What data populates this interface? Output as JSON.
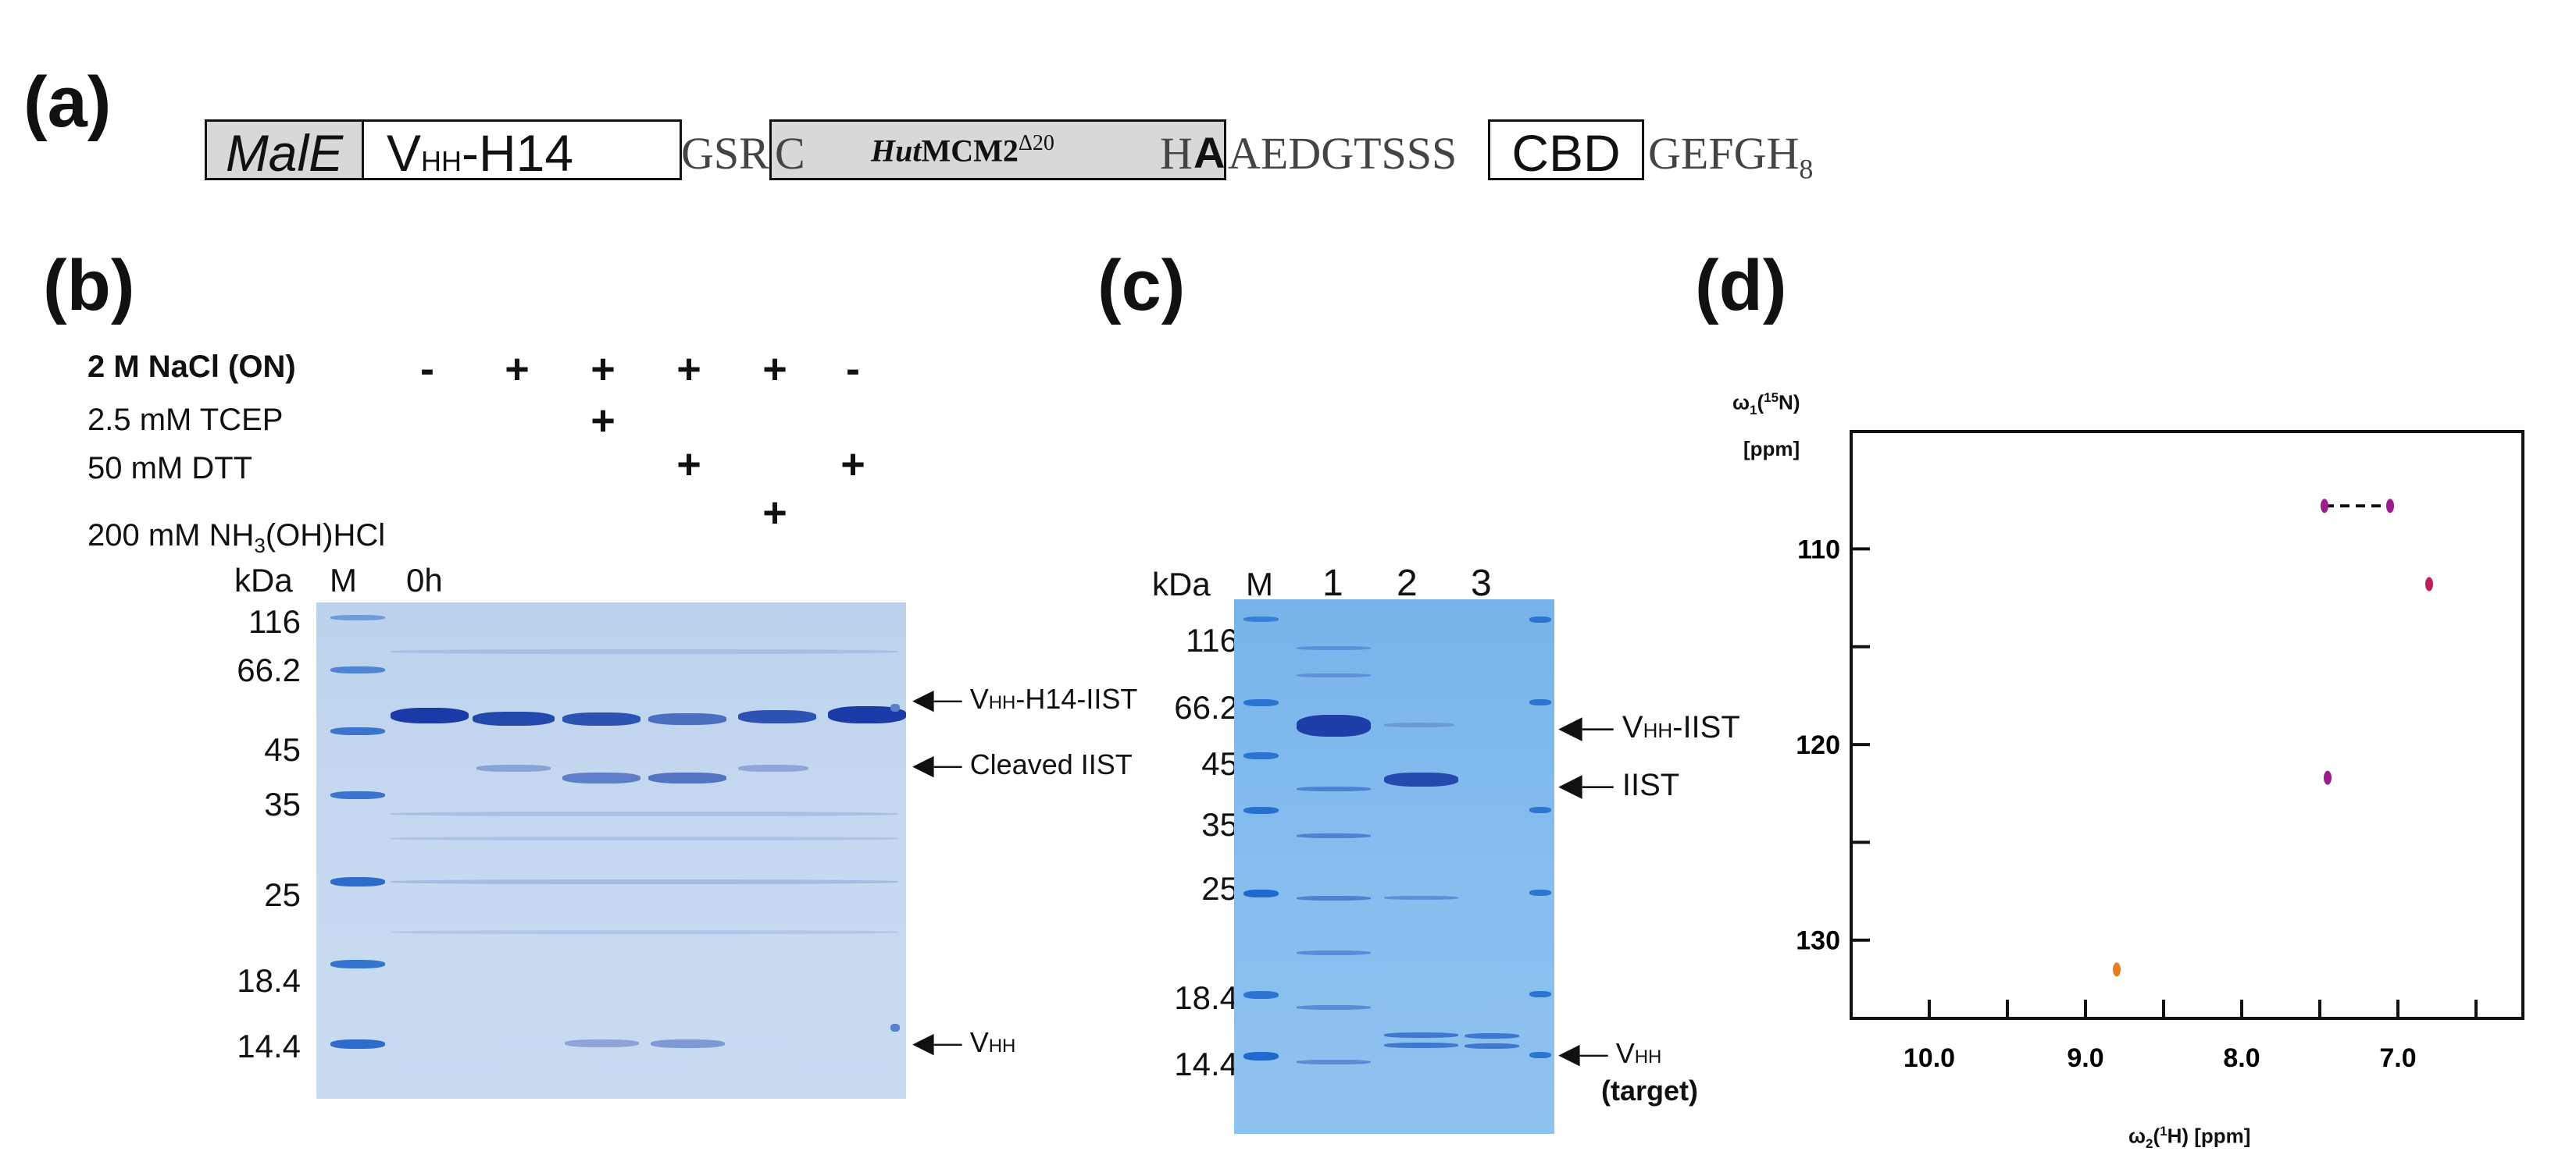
{
  "panel_a": {
    "label": "(a)",
    "segments": {
      "male": "MalE",
      "vhh_prefix": "V",
      "vhh_sub": "HH",
      "vhh_suffix": "-H14",
      "linker1": "GSR",
      "intein_c": "C",
      "intein_name_italic": "Hut",
      "intein_name": "MCM2",
      "intein_sup": "Δ20",
      "h": "H",
      "a_bold": "A",
      "linker2": "AEDGTSSS",
      "cbd": "CBD",
      "tail": "GEFGH",
      "tail_sub": "8"
    }
  },
  "panel_b": {
    "label": "(b)",
    "conditions": [
      {
        "name": "2 M NaCl (ON)",
        "bold": true,
        "marks": [
          "-",
          "+",
          "+",
          "+",
          "+",
          "-"
        ]
      },
      {
        "name": "2.5 mM TCEP",
        "marks": [
          "",
          "",
          "+",
          "",
          "",
          ""
        ]
      },
      {
        "name": "50 mM DTT",
        "marks": [
          "",
          "",
          "",
          "+",
          "",
          "+"
        ]
      },
      {
        "name_prefix": "200 mM NH",
        "name_sub": "3",
        "name_suffix": "(OH)HCl",
        "marks": [
          "",
          "",
          "",
          "",
          "+",
          ""
        ]
      }
    ],
    "kda_label": "kDa",
    "marker_label": "M",
    "time_label": "0h",
    "mw_markers": [
      "116",
      "66.2",
      "45",
      "35",
      "25",
      "18.4",
      "14.4"
    ],
    "annotations": [
      {
        "prefix": "V",
        "sub": "HH",
        "suffix": "-H14-IIST"
      },
      {
        "prefix": "Cleaved IIST",
        "sub": "",
        "suffix": ""
      },
      {
        "prefix": "V",
        "sub": "HH",
        "suffix": ""
      }
    ]
  },
  "panel_c": {
    "label": "(c)",
    "kda_label": "kDa",
    "lanes": [
      "M",
      "1",
      "2",
      "3"
    ],
    "mw_markers": [
      "116",
      "66.2",
      "45",
      "35",
      "25",
      "18.4",
      "14.4"
    ],
    "annotations": [
      {
        "prefix": "V",
        "sub": "HH",
        "suffix": "-IIST"
      },
      {
        "prefix": "IIST",
        "sub": "",
        "suffix": ""
      },
      {
        "prefix": "V",
        "sub": "HH",
        "suffix": ""
      }
    ],
    "target_label": "(target)"
  },
  "panel_d": {
    "label": "(d)",
    "y_axis_prefix": "ω",
    "y_axis_sub": "1",
    "y_axis_nucleus": "(15N)",
    "y_axis_sup": "15",
    "y_axis_atom": "N",
    "y_unit": "[ppm]",
    "x_axis_prefix": "ω",
    "x_axis_sub": "2",
    "x_axis_sup": "1",
    "x_axis_atom": "H",
    "x_unit": "[ppm]",
    "chart_data": {
      "type": "scatter",
      "title": "",
      "xlabel": "ω2(1H) [ppm]",
      "ylabel": "ω1(15N) [ppm]",
      "xlim": [
        10.5,
        6.2
      ],
      "ylim": [
        134,
        104
      ],
      "x_ticks": [
        10.0,
        9.0,
        8.0,
        7.0
      ],
      "x_tick_labels": [
        "10.0",
        "9.0",
        "8.0",
        "7.0"
      ],
      "y_ticks": [
        110,
        120,
        130
      ],
      "y_tick_labels": [
        "110",
        "120",
        "130"
      ],
      "points": [
        {
          "x": 7.47,
          "y": 107.8,
          "color": "#9b1d8c"
        },
        {
          "x": 7.05,
          "y": 107.8,
          "color": "#9b1d8c"
        },
        {
          "x": 6.8,
          "y": 111.8,
          "color": "#c02060"
        },
        {
          "x": 7.45,
          "y": 121.7,
          "color": "#9b1d8c"
        },
        {
          "x": 8.8,
          "y": 131.5,
          "color": "#e08020"
        }
      ],
      "dashed_link": [
        [
          7.47,
          107.8
        ],
        [
          7.05,
          107.8
        ]
      ]
    }
  }
}
